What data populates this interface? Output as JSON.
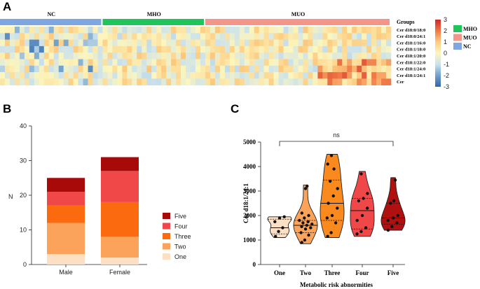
{
  "panels": {
    "a": "A",
    "b": "B",
    "c": "C"
  },
  "chart_data": [
    {
      "type": "heatmap",
      "groups": [
        {
          "name": "NC",
          "color": "#7ea6e0",
          "n": 21
        },
        {
          "name": "MHO",
          "color": "#1fc45a",
          "n": 21
        },
        {
          "name": "MUO",
          "color": "#f4958a",
          "n": 38
        }
      ],
      "groups_label": "Groups",
      "rows": [
        "Cer d18:0/18:0",
        "Cer d18:0/24:1",
        "Cer d18:1/16:0",
        "Cer d18:1/18:0",
        "Cer d18:1/20:0",
        "Cer d18:1/22:0",
        "Cer d18:1/24:0",
        "Cer d18:1/24:1",
        "Cer"
      ],
      "colorbar": {
        "ticks": [
          3,
          2,
          1,
          0,
          -1,
          -2,
          -3
        ],
        "min": -3,
        "max": 3
      },
      "legend": [
        "MHO",
        "MUO",
        "NC"
      ],
      "legend_colors": [
        "#1fc45a",
        "#f4958a",
        "#7ea6e0"
      ]
    },
    {
      "type": "bar",
      "stacked": true,
      "categories": [
        "Male",
        "Female"
      ],
      "series": [
        {
          "name": "One",
          "color": "#fde0c4",
          "values": [
            3,
            2
          ]
        },
        {
          "name": "Two",
          "color": "#fba35a",
          "values": [
            9,
            6
          ]
        },
        {
          "name": "Three",
          "color": "#fb6a0f",
          "values": [
            5,
            10
          ]
        },
        {
          "name": "Four",
          "color": "#f04848",
          "values": [
            4,
            9
          ]
        },
        {
          "name": "Five",
          "color": "#a80a0a",
          "values": [
            4,
            4
          ]
        }
      ],
      "legend_order": [
        "Five",
        "Four",
        "Three",
        "Two",
        "One"
      ],
      "ylabel": "N",
      "ylim": [
        0,
        40
      ],
      "yticks": [
        0,
        10,
        20,
        30,
        40
      ]
    },
    {
      "type": "scatter",
      "subtype": "violin",
      "categories": [
        "One",
        "Two",
        "Three",
        "Four",
        "Five"
      ],
      "colors": [
        "#fde0c4",
        "#fba35a",
        "#fb8a1e",
        "#f04848",
        "#b01010"
      ],
      "values": [
        [
          1150,
          1350,
          1500,
          1750,
          1900,
          1950
        ],
        [
          900,
          1000,
          1200,
          1300,
          1450,
          1500,
          1550,
          1600,
          1650,
          1700,
          1750,
          1800,
          1900,
          2000,
          2100,
          3100,
          3200
        ],
        [
          1150,
          1300,
          1700,
          1900,
          2000,
          2300,
          2500,
          2800,
          3100,
          3400,
          3900,
          4100,
          4450
        ],
        [
          1250,
          1350,
          1500,
          1800,
          2000,
          2300,
          2600,
          2700,
          2900,
          3700
        ],
        [
          1400,
          1550,
          1700,
          1800,
          1900,
          2000,
          2500,
          2600,
          3450
        ]
      ],
      "quartiles": [
        [
          1250,
          1500,
          1850
        ],
        [
          1300,
          1600,
          1800
        ],
        [
          1800,
          2500,
          3450
        ],
        [
          1450,
          2200,
          2700
        ],
        [
          1650,
          1900,
          2500
        ]
      ],
      "ranges": [
        [
          1100,
          1950
        ],
        [
          850,
          3250
        ],
        [
          1100,
          4500
        ],
        [
          1150,
          3800
        ],
        [
          1400,
          3550
        ]
      ],
      "ylabel": "Cer d18:1/24:1",
      "xlabel": "Metabolic risk abnormities",
      "ylim": [
        0,
        5000
      ],
      "yticks": [
        0,
        1000,
        2000,
        3000,
        4000,
        5000
      ],
      "annotation": "ns"
    }
  ]
}
